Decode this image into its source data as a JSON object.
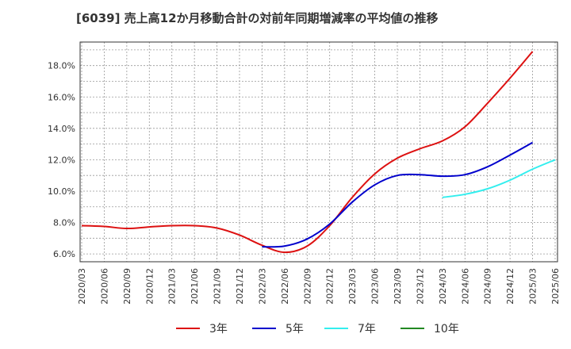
{
  "chart_data": {
    "type": "line",
    "title": "[6039]  売上高12か月移動合計の対前年同期増減率の平均値の推移",
    "xlabel": "",
    "ylabel": "",
    "x": [
      "2020/03",
      "2020/06",
      "2020/09",
      "2020/12",
      "2021/03",
      "2021/06",
      "2021/09",
      "2021/12",
      "2022/03",
      "2022/06",
      "2022/09",
      "2022/12",
      "2023/03",
      "2023/06",
      "2023/09",
      "2023/12",
      "2024/03",
      "2024/06",
      "2024/09",
      "2024/12",
      "2025/03",
      "2025/06"
    ],
    "y_ticks": [
      "6.0%",
      "8.0%",
      "10.0%",
      "12.0%",
      "14.0%",
      "16.0%",
      "18.0%"
    ],
    "ylim": [
      5.5,
      19.5
    ],
    "grid": true,
    "legend_position": "bottom",
    "series": [
      {
        "name": "3年",
        "color": "#dd1111",
        "values": [
          7.8,
          7.75,
          7.62,
          7.72,
          7.8,
          7.8,
          7.65,
          7.2,
          6.55,
          6.1,
          6.5,
          7.8,
          9.6,
          11.1,
          12.1,
          12.7,
          13.2,
          14.1,
          15.6,
          17.2,
          18.9,
          null
        ]
      },
      {
        "name": "5年",
        "color": "#0000cc",
        "values": [
          null,
          null,
          null,
          null,
          null,
          null,
          null,
          null,
          6.45,
          6.5,
          6.95,
          7.9,
          9.3,
          10.4,
          11.0,
          11.05,
          10.95,
          11.05,
          11.55,
          12.3,
          13.1,
          null
        ]
      },
      {
        "name": "7年",
        "color": "#33eeee",
        "values": [
          null,
          null,
          null,
          null,
          null,
          null,
          null,
          null,
          null,
          null,
          null,
          null,
          null,
          null,
          null,
          null,
          9.6,
          9.8,
          10.15,
          10.7,
          11.4,
          12.0
        ]
      },
      {
        "name": "10年",
        "color": "#228822",
        "values": [
          null,
          null,
          null,
          null,
          null,
          null,
          null,
          null,
          null,
          null,
          null,
          null,
          null,
          null,
          null,
          null,
          null,
          null,
          null,
          null,
          null,
          null
        ]
      }
    ]
  }
}
